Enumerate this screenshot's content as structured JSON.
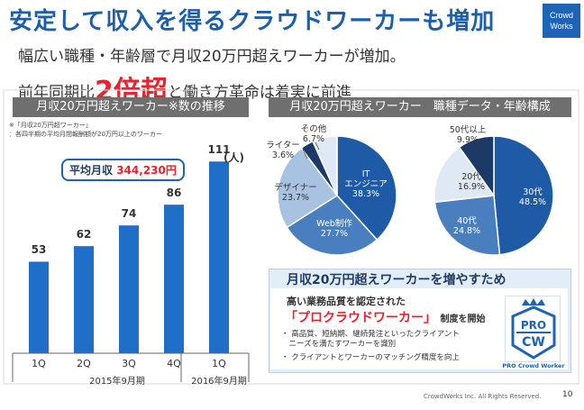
{
  "header": {
    "title": "安定して収入を得るクラウドワーカーも増加",
    "logo_line1": "Crowd",
    "logo_line2": "Works",
    "subtitle1": "幅広い職種・年齢層で月収20万円超えワーカーが増加。",
    "subtitle2_pre": "前年同期比",
    "subtitle2_big": "2倍超",
    "subtitle2_post": "と働き方革命は着実に前進"
  },
  "left_section": {
    "title": "月収20万円超えワーカー※数の推移",
    "note_line1": "※「月収20万円超ワーカー」",
    "note_line2": "：各四半期の平均月間報酬額が20万円以上のワーカー",
    "avg_label": "平均月収",
    "avg_value": "344,230円",
    "unit": "(人)",
    "period1": "2015年9月期",
    "period2": "2016年9月期"
  },
  "right_section": {
    "title": "月収20万円超えワーカー　職種データ・年齢構成"
  },
  "chart_data": [
    {
      "type": "bar",
      "title": "月収20万円超えワーカー※数の推移",
      "categories": [
        "1Q",
        "2Q",
        "3Q",
        "4Q",
        "1Q"
      ],
      "values": [
        53,
        62,
        74,
        86,
        111
      ],
      "value_labels": [
        "53",
        "62",
        "74",
        "86",
        "111"
      ],
      "ylabel": "(人)",
      "ylim": [
        0,
        120
      ],
      "colors": [
        "#1f6fc8",
        "#1f6fc8",
        "#1f6fc8",
        "#1f6fc8",
        "#1f6fc8"
      ]
    },
    {
      "type": "pie",
      "title": "職種データ",
      "slices": [
        {
          "label": "IT\nエンジニア",
          "pct": "38.3%",
          "value": 38.3,
          "color": "#1e5aa6",
          "text": "w"
        },
        {
          "label": "Web制作",
          "pct": "27.7%",
          "value": 27.7,
          "color": "#4a7fbf",
          "text": "w"
        },
        {
          "label": "デザイナー",
          "pct": "23.7%",
          "value": 23.7,
          "color": "#a8c3e1",
          "text": "d"
        },
        {
          "label": "ライター",
          "pct": "3.6%",
          "value": 3.6,
          "color": "#1c3a66",
          "text": "d"
        },
        {
          "label": "その他",
          "pct": "6.7%",
          "value": 6.7,
          "color": "#dfe9f4",
          "text": "d"
        }
      ]
    },
    {
      "type": "pie",
      "title": "年齢構成",
      "slices": [
        {
          "label": "30代",
          "pct": "48.5%",
          "value": 48.5,
          "color": "#1e5aa6",
          "text": "w"
        },
        {
          "label": "40代",
          "pct": "24.8%",
          "value": 24.8,
          "color": "#4a7fbf",
          "text": "w"
        },
        {
          "label": "20代",
          "pct": "16.9%",
          "value": 16.9,
          "color": "#dfe9f4",
          "text": "d"
        },
        {
          "label": "50代以上",
          "pct": "9.9%",
          "value": 9.9,
          "color": "#1c3a66",
          "text": "d"
        }
      ]
    }
  ],
  "promo": {
    "title": "月収20万円超えワーカーを増やすため",
    "line1": "高い業務品質を認定された",
    "line2_hl": "「プロクラウドワーカー」",
    "line2_tail": "制度を開始",
    "bullet1a": "・ 高品質、短納期、継続発注といったクライアント",
    "bullet1b": "　ニーズを満たすワーカーを識別",
    "bullet2": "・ クライアントとワーカーのマッチング精度を向上",
    "badge_top": "PRO",
    "badge_bottom": "CW",
    "badge_caption": "PRO Crowd Worker"
  },
  "footer": {
    "copyright": "CrowdWorks Inc. All Rights Reserved.",
    "page": "10"
  },
  "colors": {
    "brand": "#1f63b4",
    "accent_red": "#e8222e",
    "bar": "#1f6fc8",
    "section_bar": "#6f6f6f"
  }
}
